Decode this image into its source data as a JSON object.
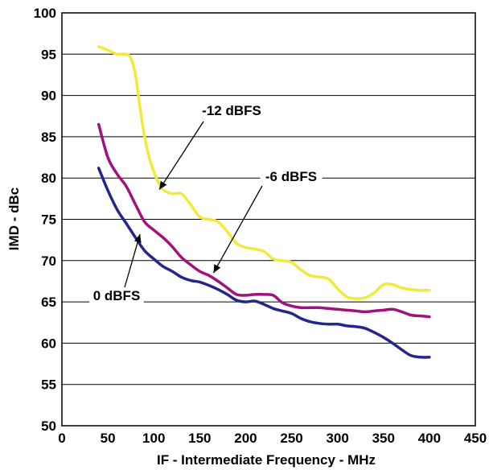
{
  "chart_data": {
    "type": "line",
    "xlabel": "IF - Intermediate Frequency - MHz",
    "ylabel": "IMD - dBc",
    "xlim": [
      0,
      450
    ],
    "ylim": [
      50,
      100
    ],
    "xticks": [
      0,
      50,
      100,
      150,
      200,
      250,
      300,
      350,
      400,
      450
    ],
    "yticks": [
      50,
      55,
      60,
      65,
      70,
      75,
      80,
      85,
      90,
      95,
      100
    ],
    "grid": "horizontal",
    "colors": {
      "minus12": "#f2ea3a",
      "minus6": "#a1127f",
      "zero": "#24268c"
    },
    "series": [
      {
        "key": "minus12",
        "name": "-12 dBFS",
        "x": [
          40,
          50,
          60,
          70,
          75,
          80,
          85,
          90,
          95,
          100,
          105,
          110,
          120,
          130,
          140,
          150,
          160,
          170,
          180,
          190,
          200,
          210,
          220,
          230,
          240,
          250,
          260,
          270,
          280,
          290,
          300,
          310,
          320,
          330,
          340,
          350,
          360,
          370,
          380,
          390,
          400
        ],
        "values": [
          95.9,
          95.5,
          95.0,
          95.0,
          94.5,
          92.5,
          88.5,
          85.0,
          82.5,
          80.8,
          79.5,
          78.6,
          78.1,
          78.1,
          76.8,
          75.3,
          75.0,
          74.7,
          73.5,
          72.1,
          71.6,
          71.4,
          71.1,
          70.2,
          70.0,
          69.8,
          68.9,
          68.2,
          68.0,
          67.8,
          66.6,
          65.6,
          65.4,
          65.5,
          66.1,
          67.1,
          67.1,
          66.7,
          66.5,
          66.4,
          66.4
        ],
        "annotation": {
          "label": "-12 dBFS",
          "anchor": [
            106,
            78.6
          ]
        }
      },
      {
        "key": "minus6",
        "name": "-6 dBFS",
        "x": [
          40,
          50,
          60,
          70,
          80,
          90,
          100,
          110,
          120,
          130,
          140,
          150,
          160,
          170,
          180,
          190,
          200,
          210,
          220,
          230,
          240,
          250,
          260,
          270,
          280,
          290,
          300,
          310,
          320,
          330,
          340,
          350,
          360,
          370,
          380,
          390,
          400
        ],
        "values": [
          86.5,
          82.5,
          80.5,
          79.0,
          76.8,
          74.7,
          73.7,
          72.8,
          71.7,
          70.4,
          69.5,
          68.7,
          68.2,
          67.5,
          66.7,
          65.9,
          65.8,
          65.9,
          65.9,
          65.8,
          64.9,
          64.5,
          64.3,
          64.3,
          64.3,
          64.2,
          64.1,
          64.0,
          63.9,
          63.8,
          63.9,
          64.0,
          64.1,
          63.8,
          63.4,
          63.3,
          63.2
        ],
        "annotation": {
          "label": "-6 dBFS",
          "anchor": [
            165,
            68.5
          ]
        }
      },
      {
        "key": "zero",
        "name": "0 dBFS",
        "x": [
          40,
          50,
          60,
          70,
          80,
          90,
          100,
          110,
          120,
          130,
          140,
          150,
          160,
          170,
          180,
          190,
          200,
          210,
          220,
          230,
          240,
          250,
          260,
          270,
          280,
          290,
          300,
          310,
          320,
          330,
          340,
          350,
          360,
          370,
          380,
          390,
          400
        ],
        "values": [
          81.2,
          78.5,
          76.2,
          74.5,
          72.8,
          71.2,
          70.2,
          69.3,
          68.7,
          68.0,
          67.6,
          67.4,
          67.0,
          66.5,
          65.9,
          65.2,
          65.0,
          65.1,
          64.7,
          64.2,
          63.9,
          63.6,
          63.0,
          62.6,
          62.4,
          62.3,
          62.3,
          62.1,
          62.0,
          61.8,
          61.3,
          60.7,
          60.0,
          59.2,
          58.5,
          58.3,
          58.3
        ],
        "annotation": {
          "label": "0 dBFS",
          "anchor": [
            85,
            73.2
          ]
        }
      }
    ]
  }
}
